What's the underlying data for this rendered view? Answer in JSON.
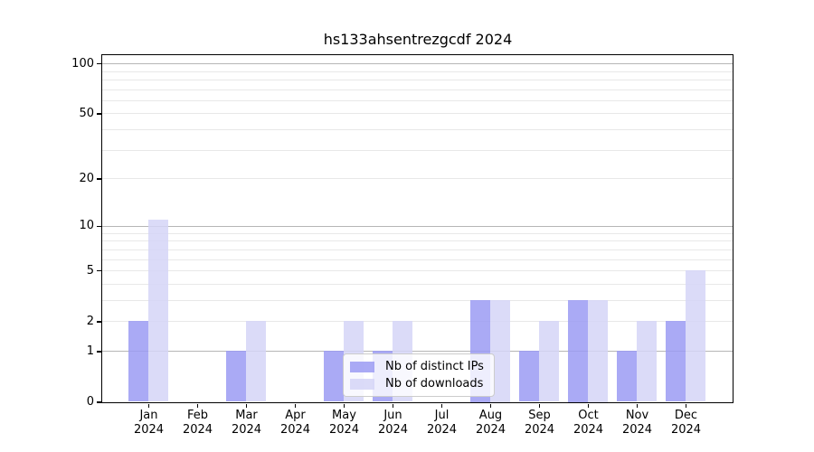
{
  "chart_data": {
    "type": "bar",
    "title": "hs133ahsentrezgcdf 2024",
    "categories": [
      "Jan",
      "Feb",
      "Mar",
      "Apr",
      "May",
      "Jun",
      "Jul",
      "Aug",
      "Sep",
      "Oct",
      "Nov",
      "Dec"
    ],
    "x_year_label": "2024",
    "series": [
      {
        "name": "Nb of distinct IPs",
        "color": "rgba(155,155,243,0.85)",
        "values": [
          2,
          0,
          1,
          0,
          1,
          1,
          0,
          3,
          1,
          3,
          1,
          2
        ]
      },
      {
        "name": "Nb of downloads",
        "color": "rgba(213,213,247,0.85)",
        "values": [
          11,
          0,
          2,
          0,
          2,
          2,
          0,
          3,
          2,
          3,
          2,
          5
        ]
      }
    ],
    "y_axis": {
      "scale": "log10(1+x)",
      "ticks": [
        0,
        1,
        2,
        5,
        10,
        20,
        50,
        100
      ],
      "ylim": [
        0,
        112
      ]
    },
    "xlabel": "",
    "ylabel": "",
    "grid": {
      "major_lines": [
        1,
        10,
        100
      ],
      "minor_lines": [
        2,
        3,
        4,
        5,
        6,
        7,
        8,
        9,
        20,
        30,
        40,
        50,
        60,
        70,
        80,
        90
      ],
      "major_color": "#b6b6b6",
      "minor_color": "#e8e8e8"
    },
    "legend": {
      "position": "lower center",
      "background": "rgba(255,255,255,0.8)",
      "border_color": "#cccccc"
    }
  }
}
